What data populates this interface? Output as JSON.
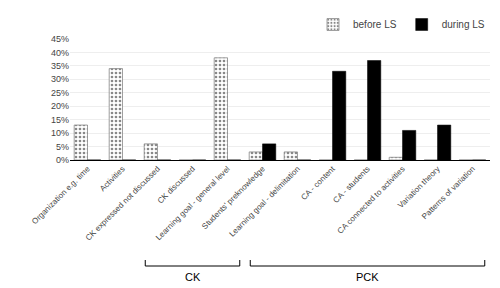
{
  "chart_data": {
    "type": "bar",
    "categories": [
      "Organization e.g. time",
      "Activities",
      "CK expressed not discussed",
      "CK discussed",
      "Learning goal - general level",
      "Students' preknowledge",
      "Learning goal - delimitation",
      "CA - content",
      "CA - students",
      "CA connected to activities",
      "Variation theory",
      "Patterns of variation"
    ],
    "series": [
      {
        "name": "before LS",
        "color": "#888888",
        "values": [
          13,
          34,
          6,
          0,
          38,
          3,
          3,
          0,
          0,
          1,
          0,
          0
        ]
      },
      {
        "name": "during LS",
        "color": "#000000",
        "values": [
          0,
          0,
          0,
          0,
          0,
          6,
          0,
          33,
          37,
          11,
          13,
          0
        ]
      }
    ],
    "ylim": [
      0,
      45
    ],
    "yticks": [
      {
        "value": 0,
        "label": "0%"
      },
      {
        "value": 5,
        "label": "5%"
      },
      {
        "value": 10,
        "label": "10%"
      },
      {
        "value": 15,
        "label": "15%"
      },
      {
        "value": 20,
        "label": "20%"
      },
      {
        "value": 25,
        "label": "25%"
      },
      {
        "value": 30,
        "label": "30%"
      },
      {
        "value": 35,
        "label": "35%"
      },
      {
        "value": 40,
        "label": "40%"
      },
      {
        "value": 45,
        "label": "45%"
      }
    ],
    "grid": true,
    "legend": "upper right",
    "annotations": [
      {
        "text": "CK",
        "from": "CK expressed not discussed",
        "to": "Learning goal - general level"
      },
      {
        "text": "PCK",
        "from": "Students' preknowledge",
        "to": "Patterns of variation"
      }
    ]
  }
}
